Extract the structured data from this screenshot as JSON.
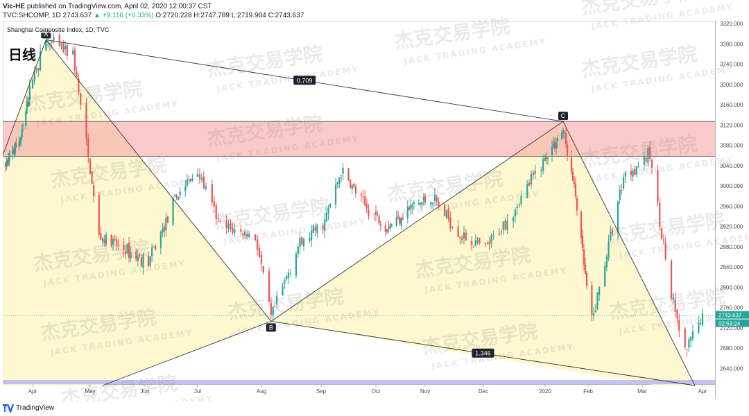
{
  "header": {
    "author": "Vic-HE",
    "published": "published on TradingView.com, April 02, 2020 12:00:37 CST",
    "symbol": "TVC:SHCOMP, 1D",
    "last": "2743.637",
    "change": "▲ +9.116 (+0.33%)",
    "ohlc": "O:2720.228 H:2747.789 L:2719.904 C:2743.637"
  },
  "legend_title": "Shanghai Composite Index, 1D, TVC",
  "timeframe_label": "日线",
  "watermark": {
    "cn": "杰克交易学院",
    "en": "JACK TRADING ACADEMY"
  },
  "footer": {
    "brand": "TradingView"
  },
  "price_tags": {
    "last": "2743.637",
    "countdown": "02:59:24"
  },
  "colors": {
    "up": "#26a69a",
    "down": "#ef5350",
    "zone": "#f7a6a6",
    "pattern_fill": "#fdf7c8",
    "bottom_band": "#b9b7f0"
  },
  "chart_data": {
    "type": "candlestick",
    "title": "Shanghai Composite Index, 1D, TVC",
    "y_ticks": [
      3320,
      3280,
      3240,
      3200,
      3160,
      3120,
      3080,
      3040,
      3000,
      2960,
      2920,
      2880,
      2840,
      2800,
      2760,
      2720,
      2680,
      2640
    ],
    "ylim": [
      2612,
      3324
    ],
    "x_ticks": [
      "Apr",
      "May",
      "Jun",
      "Jul",
      "Aug",
      "Sep",
      "Oct",
      "Nov",
      "Dec",
      "2020",
      "Feb",
      "Mar",
      "Apr"
    ],
    "last_close": 2743.637,
    "resistance_zone": [
      3058,
      3127
    ],
    "harmonic_points": [
      {
        "label": "A",
        "date": "2019-04-08",
        "price": 3288
      },
      {
        "label": "B",
        "date": "2019-08-06",
        "price": 2733
      },
      {
        "label": "C",
        "date": "2020-01-14",
        "price": 3127
      }
    ],
    "ratios": [
      {
        "label": "0.709",
        "segment": "A-C"
      },
      {
        "label": "1.346",
        "segment": "B-D"
      }
    ],
    "path": [
      {
        "date": "2019-03-04",
        "price": 3040
      },
      {
        "date": "2019-03-20",
        "price": 3095
      },
      {
        "date": "2019-04-08",
        "price": 3285
      },
      {
        "date": "2019-04-22",
        "price": 3260
      },
      {
        "date": "2019-05-06",
        "price": 2900
      },
      {
        "date": "2019-05-20",
        "price": 2875
      },
      {
        "date": "2019-06-03",
        "price": 2850
      },
      {
        "date": "2019-06-20",
        "price": 2985
      },
      {
        "date": "2019-07-01",
        "price": 3030
      },
      {
        "date": "2019-07-12",
        "price": 2920
      },
      {
        "date": "2019-07-29",
        "price": 2900
      },
      {
        "date": "2019-08-06",
        "price": 2740
      },
      {
        "date": "2019-08-20",
        "price": 2880
      },
      {
        "date": "2019-09-03",
        "price": 2930
      },
      {
        "date": "2019-09-12",
        "price": 3030
      },
      {
        "date": "2019-09-25",
        "price": 2960
      },
      {
        "date": "2019-10-08",
        "price": 2920
      },
      {
        "date": "2019-10-24",
        "price": 2960
      },
      {
        "date": "2019-11-05",
        "price": 2975
      },
      {
        "date": "2019-11-20",
        "price": 2900
      },
      {
        "date": "2019-12-02",
        "price": 2875
      },
      {
        "date": "2019-12-16",
        "price": 2950
      },
      {
        "date": "2019-12-31",
        "price": 3050
      },
      {
        "date": "2020-01-14",
        "price": 3110
      },
      {
        "date": "2020-01-23",
        "price": 2980
      },
      {
        "date": "2020-02-03",
        "price": 2730
      },
      {
        "date": "2020-02-20",
        "price": 3020
      },
      {
        "date": "2020-03-05",
        "price": 3060
      },
      {
        "date": "2020-03-16",
        "price": 2780
      },
      {
        "date": "2020-03-23",
        "price": 2670
      },
      {
        "date": "2020-04-01",
        "price": 2743
      }
    ]
  }
}
